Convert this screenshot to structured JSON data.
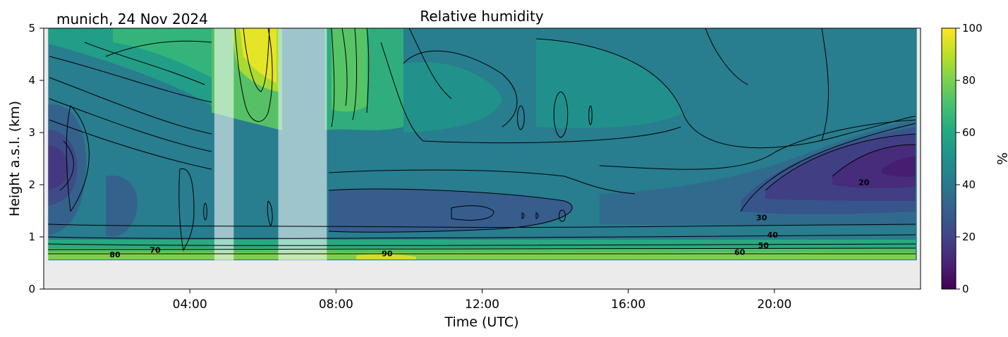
{
  "chart_data": {
    "type": "heatmap",
    "title": "Relative humidity",
    "subtitle": "munich, 24 Nov 2024",
    "xlabel": "Time (UTC)",
    "ylabel": "Height a.s.l. (km)",
    "x_range_hours": [
      0,
      24
    ],
    "ylim": [
      0,
      5
    ],
    "x_ticks": [
      {
        "hour": 4,
        "label": "04:00"
      },
      {
        "hour": 8,
        "label": "08:00"
      },
      {
        "hour": 12,
        "label": "12:00"
      },
      {
        "hour": 16,
        "label": "16:00"
      },
      {
        "hour": 20,
        "label": "20:00"
      }
    ],
    "y_ticks": [
      0,
      1,
      2,
      3,
      4,
      5
    ],
    "colorbar": {
      "label": "%",
      "range": [
        0,
        100
      ],
      "ticks": [
        0,
        20,
        40,
        60,
        80,
        100
      ],
      "colormap": "viridis"
    },
    "data_extent": {
      "x": [
        0.12,
        23.9
      ],
      "y": [
        0.55,
        5.0
      ]
    },
    "masked_periods_hours": [
      [
        4.67,
        5.2
      ],
      [
        6.42,
        7.75
      ]
    ],
    "contour_levels": [
      20,
      30,
      40,
      50,
      60,
      70,
      80,
      90
    ],
    "contour_labels": [
      {
        "text": "80",
        "hour": 1.95,
        "km": 0.66
      },
      {
        "text": "70",
        "hour": 3.05,
        "km": 0.75
      },
      {
        "text": "90",
        "hour": 9.4,
        "km": 0.68
      },
      {
        "text": "60",
        "hour": 19.05,
        "km": 0.71
      },
      {
        "text": "50",
        "hour": 19.7,
        "km": 0.84
      },
      {
        "text": "40",
        "hour": 19.95,
        "km": 1.04
      },
      {
        "text": "30",
        "hour": 19.65,
        "km": 1.37
      },
      {
        "text": "20",
        "hour": 22.45,
        "km": 2.05
      }
    ],
    "colors": {
      "background": "#ebebeb",
      "contour": "#000000"
    }
  }
}
